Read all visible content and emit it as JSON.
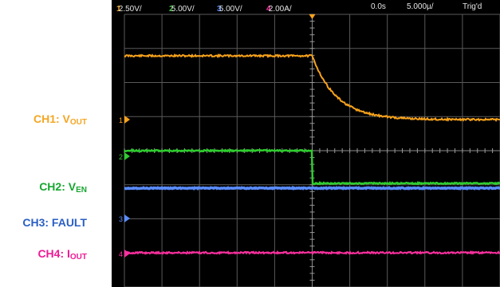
{
  "labels": {
    "ch1": {
      "prefix": "CH1: V",
      "sub": "OUT",
      "color": "#f5a623"
    },
    "ch2": {
      "prefix": "CH2: V",
      "sub": "EN",
      "color": "#16a630"
    },
    "ch3": {
      "prefix": "CH3: FAULT",
      "sub": "",
      "color": "#2b5fc4"
    },
    "ch4": {
      "prefix": "CH4: I",
      "sub": "OUT",
      "color": "#ee1a95"
    }
  },
  "statusbar": {
    "ch1": {
      "num": "1",
      "scale": "2.50V/",
      "color": "#f5a623"
    },
    "ch2": {
      "num": "2",
      "scale": "5.00V/",
      "color": "#3ec43e"
    },
    "ch3": {
      "num": "3",
      "scale": "5.00V/",
      "color": "#5b8dff"
    },
    "ch4": {
      "num": "4",
      "scale": "2.00A/",
      "color": "#ff3aa8"
    },
    "time_offset": "0.0s",
    "timebase": "5.000µ/",
    "trigger": "Trig'd",
    "text_color": "#e6e6e6"
  },
  "trace_colors": {
    "ch1": "#f7a21b",
    "ch2": "#2fcc2f",
    "ch3": "#5a8cff",
    "ch4": "#ff2fa0"
  },
  "markers": {
    "ch1": "1",
    "ch2": "2",
    "ch3": "3",
    "ch4": "4"
  }
}
